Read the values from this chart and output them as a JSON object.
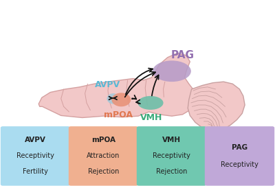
{
  "brain_color": "#f2c8c8",
  "brain_outline_color": "#d4a0a0",
  "cereb_color": "#f2c8c8",
  "cereb_outline_color": "#c8a0a0",
  "pag_color": "#b59bc8",
  "avpv_color": "#a8c8d8",
  "mpoa_color": "#e8937a",
  "vmh_color": "#6dbfa8",
  "label_avpv_color": "#5bb8d4",
  "label_mpoa_color": "#e07850",
  "label_vmh_color": "#3aab7a",
  "label_pag_color": "#9370b0",
  "box_avpv_color": "#aadcf0",
  "box_mpoa_color": "#f0b090",
  "box_vmh_color": "#70c8b0",
  "box_pag_color": "#c0a8d8",
  "arrow_color": "#111111",
  "boxes": [
    {
      "lines": [
        "AVPV",
        "Receptivity",
        "Fertility"
      ]
    },
    {
      "lines": [
        "mPOA",
        "Attraction",
        "Rejection"
      ]
    },
    {
      "lines": [
        "VMH",
        "Receptivity",
        "Rejection"
      ]
    },
    {
      "lines": [
        "PAG",
        "Receptivity",
        ""
      ]
    }
  ],
  "background_color": "#ffffff"
}
